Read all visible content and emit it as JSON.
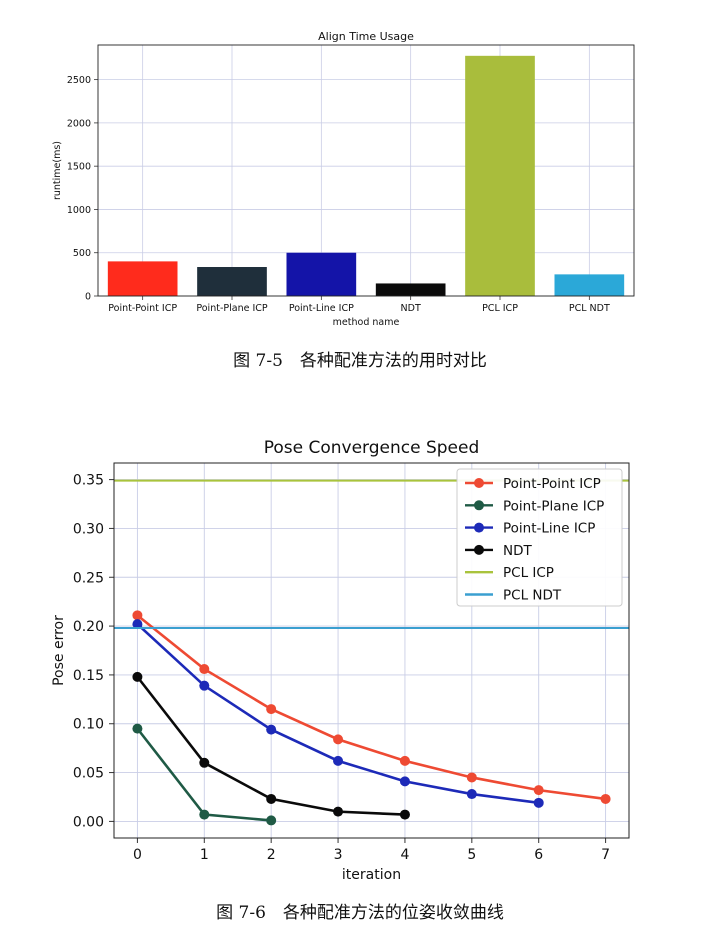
{
  "chart_data": [
    {
      "type": "bar",
      "title": "Align Time Usage",
      "xlabel": "method name",
      "ylabel": "runtime(ms)",
      "categories": [
        "Point-Point ICP",
        "Point-Plane ICP",
        "Point-Line ICP",
        "NDT",
        "PCL ICP",
        "PCL NDT"
      ],
      "values": [
        400,
        335,
        500,
        145,
        2775,
        250
      ],
      "colors": [
        "#ff2b1c",
        "#1f2f3b",
        "#1414a8",
        "#0b0b0b",
        "#a9bd3c",
        "#2ba8d8"
      ],
      "ylim": [
        0,
        2900
      ],
      "yticks": [
        0,
        500,
        1000,
        1500,
        2000,
        2500
      ],
      "grid": true
    },
    {
      "type": "line",
      "title": "Pose Convergence Speed",
      "xlabel": "iteration",
      "ylabel": "Pose error",
      "xlim": [
        -0.35,
        7.35
      ],
      "ylim": [
        -0.017,
        0.367
      ],
      "xticks": [
        0,
        1,
        2,
        3,
        4,
        5,
        6,
        7
      ],
      "yticks": [
        0.0,
        0.05,
        0.1,
        0.15,
        0.2,
        0.25,
        0.3,
        0.35
      ],
      "ytick_labels": [
        "0.00",
        "0.05",
        "0.10",
        "0.15",
        "0.20",
        "0.25",
        "0.30",
        "0.35"
      ],
      "grid": true,
      "legend_position": "top-right",
      "series": [
        {
          "name": "Point-Point ICP",
          "color": "#ee4a33",
          "marker": true,
          "x": [
            0,
            1,
            2,
            3,
            4,
            5,
            6,
            7
          ],
          "y": [
            0.211,
            0.156,
            0.115,
            0.084,
            0.062,
            0.045,
            0.032,
            0.023
          ]
        },
        {
          "name": "Point-Plane ICP",
          "color": "#1f5a45",
          "marker": true,
          "x": [
            0,
            1,
            2
          ],
          "y": [
            0.095,
            0.007,
            0.001
          ]
        },
        {
          "name": "Point-Line ICP",
          "color": "#1d2ab8",
          "marker": true,
          "x": [
            0,
            1,
            2,
            3,
            4,
            5,
            6
          ],
          "y": [
            0.202,
            0.139,
            0.094,
            0.062,
            0.041,
            0.028,
            0.019
          ]
        },
        {
          "name": "NDT",
          "color": "#0a0a0a",
          "marker": true,
          "x": [
            0,
            1,
            2,
            3,
            4
          ],
          "y": [
            0.148,
            0.06,
            0.023,
            0.01,
            0.007
          ]
        },
        {
          "name": "PCL ICP",
          "color": "#a9c33c",
          "marker": false,
          "hline": 0.349
        },
        {
          "name": "PCL NDT",
          "color": "#3a9fd0",
          "marker": false,
          "hline": 0.198
        }
      ]
    }
  ],
  "captions": {
    "fig1": "图 7-5　各种配准方法的用时对比",
    "fig2": "图 7-6　各种配准方法的位姿收敛曲线"
  }
}
